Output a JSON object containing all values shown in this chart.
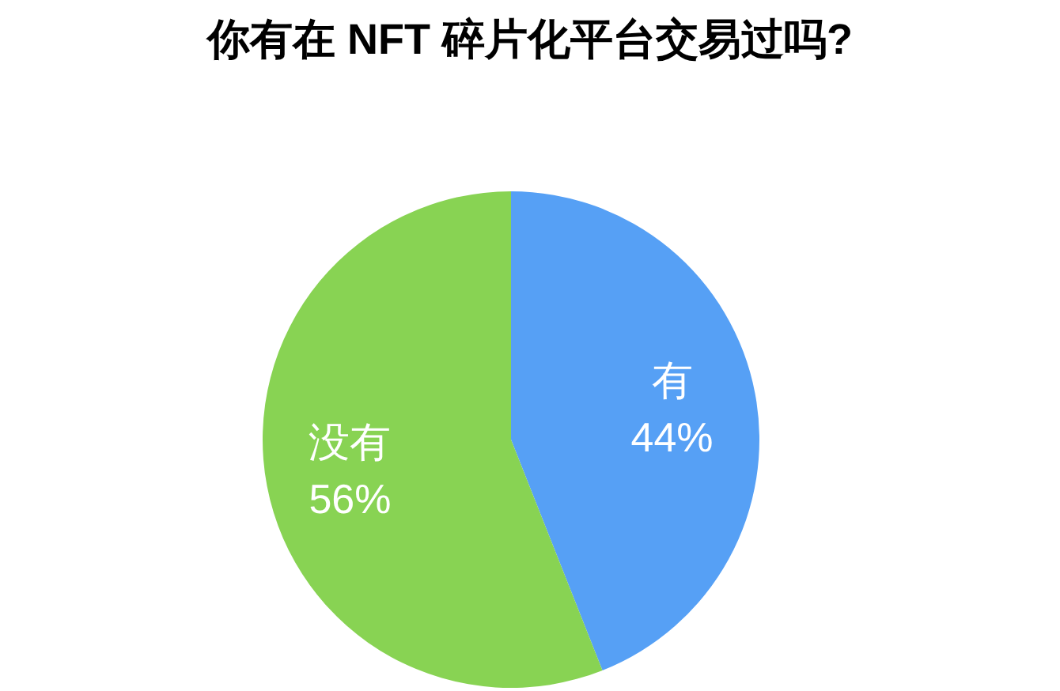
{
  "chart_data": {
    "type": "pie",
    "title": "你有在 NFT 碎片化平台交易过吗?",
    "categories": [
      "有",
      "没有"
    ],
    "values": [
      44,
      56
    ],
    "colors": [
      "#56a0f5",
      "#88d353"
    ],
    "value_labels": [
      "44%",
      "56%"
    ]
  }
}
